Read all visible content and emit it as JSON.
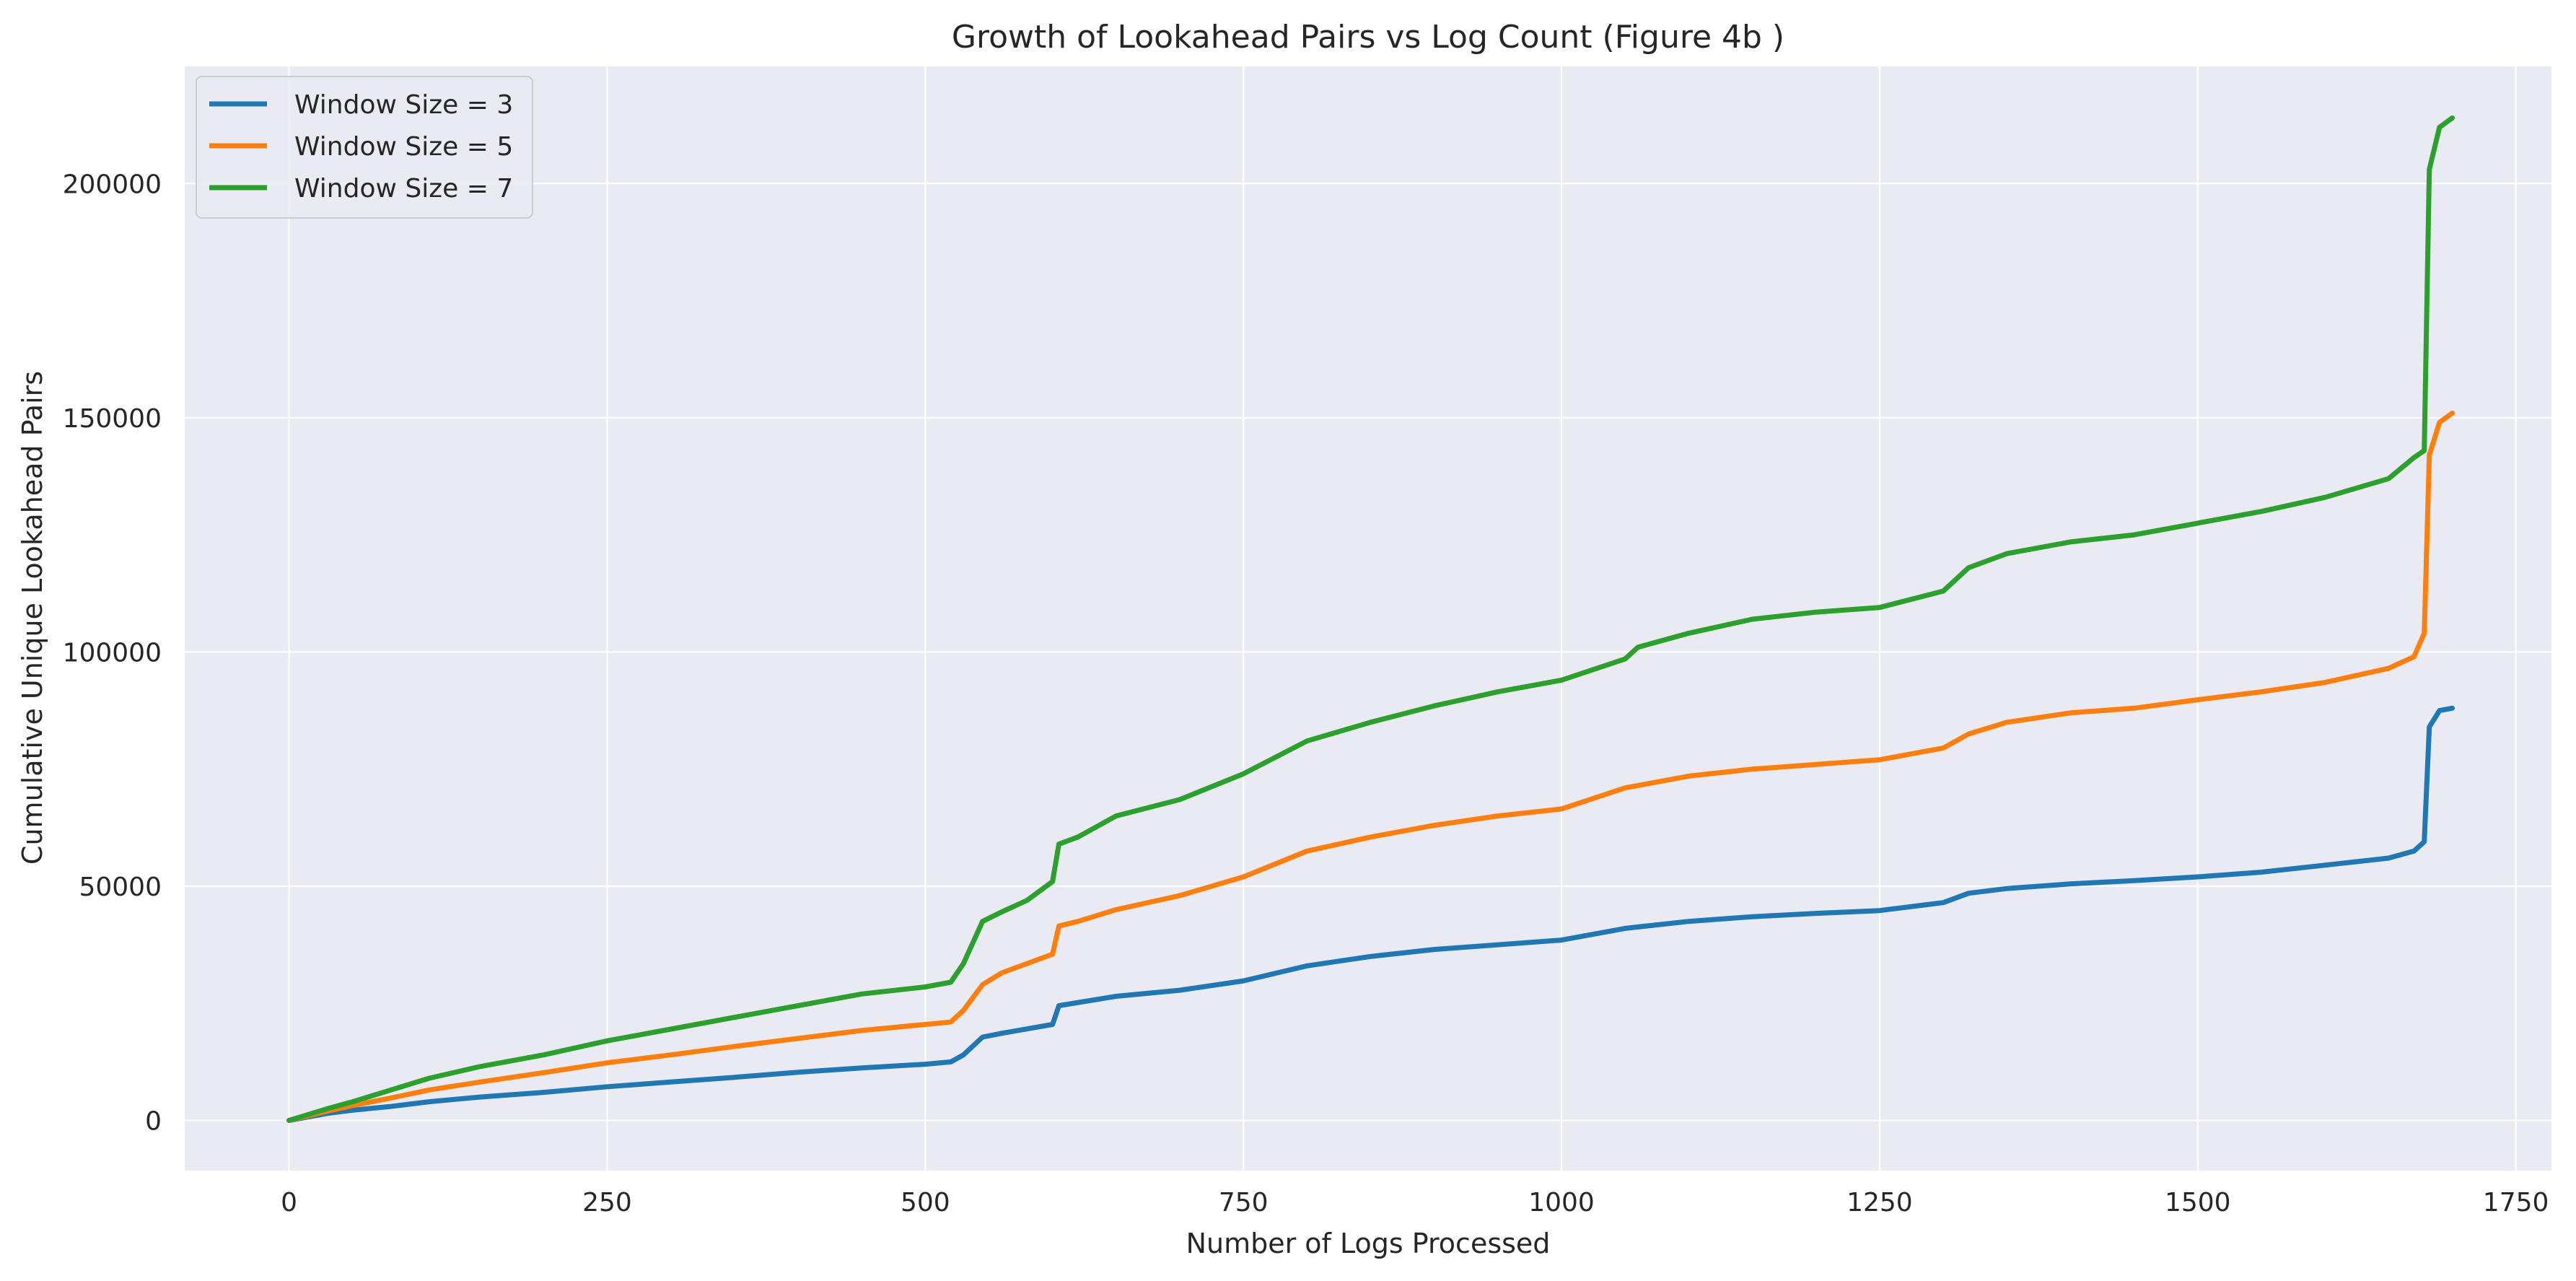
{
  "chart_data": {
    "type": "line",
    "title": "Growth of Lookahead Pairs vs Log Count (Figure 4b )",
    "xlabel": "Number of Logs Processed",
    "ylabel": "Cumulative Unique Lookahead Pairs",
    "xlim": [
      -82,
      1778
    ],
    "ylim": [
      -10700,
      225000
    ],
    "xticks": [
      0,
      250,
      500,
      750,
      1000,
      1250,
      1500,
      1750
    ],
    "yticks": [
      0,
      50000,
      100000,
      150000,
      200000
    ],
    "grid": true,
    "legend_position": "top-left",
    "colors": {
      "background": "#eaeaf2",
      "grid": "#ffffff"
    },
    "series": [
      {
        "name": "Window Size = 3",
        "color": "#1f77b4",
        "points": [
          [
            0,
            0
          ],
          [
            30,
            1500
          ],
          [
            50,
            2200
          ],
          [
            80,
            3000
          ],
          [
            110,
            4000
          ],
          [
            150,
            5000
          ],
          [
            200,
            6000
          ],
          [
            250,
            7200
          ],
          [
            300,
            8200
          ],
          [
            350,
            9200
          ],
          [
            400,
            10300
          ],
          [
            450,
            11200
          ],
          [
            500,
            12000
          ],
          [
            520,
            12500
          ],
          [
            530,
            14000
          ],
          [
            545,
            17800
          ],
          [
            560,
            18600
          ],
          [
            600,
            20500
          ],
          [
            605,
            24500
          ],
          [
            650,
            26500
          ],
          [
            700,
            27800
          ],
          [
            750,
            29800
          ],
          [
            800,
            33000
          ],
          [
            850,
            35000
          ],
          [
            900,
            36500
          ],
          [
            1000,
            38500
          ],
          [
            1050,
            41000
          ],
          [
            1100,
            42500
          ],
          [
            1150,
            43500
          ],
          [
            1200,
            44200
          ],
          [
            1250,
            44800
          ],
          [
            1300,
            46500
          ],
          [
            1320,
            48500
          ],
          [
            1350,
            49500
          ],
          [
            1400,
            50500
          ],
          [
            1450,
            51200
          ],
          [
            1500,
            52000
          ],
          [
            1550,
            53000
          ],
          [
            1600,
            54500
          ],
          [
            1650,
            56000
          ],
          [
            1670,
            57500
          ],
          [
            1678,
            59500
          ],
          [
            1682,
            84000
          ],
          [
            1690,
            87500
          ],
          [
            1700,
            88000
          ]
        ]
      },
      {
        "name": "Window Size = 5",
        "color": "#ff7f0e",
        "points": [
          [
            0,
            0
          ],
          [
            30,
            2000
          ],
          [
            50,
            3200
          ],
          [
            80,
            4800
          ],
          [
            110,
            6500
          ],
          [
            150,
            8200
          ],
          [
            200,
            10200
          ],
          [
            250,
            12300
          ],
          [
            300,
            14000
          ],
          [
            350,
            15800
          ],
          [
            400,
            17500
          ],
          [
            450,
            19200
          ],
          [
            500,
            20500
          ],
          [
            520,
            21000
          ],
          [
            530,
            23500
          ],
          [
            545,
            29000
          ],
          [
            560,
            31500
          ],
          [
            600,
            35500
          ],
          [
            605,
            41500
          ],
          [
            620,
            42500
          ],
          [
            650,
            45000
          ],
          [
            700,
            48000
          ],
          [
            750,
            52000
          ],
          [
            800,
            57500
          ],
          [
            850,
            60500
          ],
          [
            900,
            63000
          ],
          [
            950,
            65000
          ],
          [
            1000,
            66500
          ],
          [
            1050,
            71000
          ],
          [
            1100,
            73500
          ],
          [
            1150,
            75000
          ],
          [
            1200,
            76000
          ],
          [
            1250,
            77000
          ],
          [
            1300,
            79500
          ],
          [
            1320,
            82500
          ],
          [
            1350,
            85000
          ],
          [
            1400,
            87000
          ],
          [
            1450,
            88000
          ],
          [
            1500,
            89800
          ],
          [
            1550,
            91500
          ],
          [
            1600,
            93500
          ],
          [
            1650,
            96500
          ],
          [
            1670,
            99000
          ],
          [
            1678,
            104000
          ],
          [
            1682,
            142000
          ],
          [
            1690,
            149000
          ],
          [
            1700,
            151000
          ]
        ]
      },
      {
        "name": "Window Size = 7",
        "color": "#2ca02c",
        "points": [
          [
            0,
            0
          ],
          [
            30,
            2500
          ],
          [
            50,
            4000
          ],
          [
            80,
            6500
          ],
          [
            110,
            9000
          ],
          [
            150,
            11500
          ],
          [
            200,
            14000
          ],
          [
            250,
            17000
          ],
          [
            300,
            19500
          ],
          [
            350,
            22000
          ],
          [
            400,
            24500
          ],
          [
            450,
            27000
          ],
          [
            500,
            28500
          ],
          [
            520,
            29500
          ],
          [
            530,
            33500
          ],
          [
            545,
            42500
          ],
          [
            560,
            44500
          ],
          [
            580,
            47000
          ],
          [
            600,
            51000
          ],
          [
            605,
            59000
          ],
          [
            620,
            60500
          ],
          [
            650,
            65000
          ],
          [
            700,
            68500
          ],
          [
            750,
            74000
          ],
          [
            800,
            81000
          ],
          [
            850,
            85000
          ],
          [
            900,
            88500
          ],
          [
            950,
            91500
          ],
          [
            1000,
            94000
          ],
          [
            1050,
            98500
          ],
          [
            1060,
            101000
          ],
          [
            1100,
            104000
          ],
          [
            1150,
            107000
          ],
          [
            1200,
            108500
          ],
          [
            1250,
            109500
          ],
          [
            1300,
            113000
          ],
          [
            1320,
            118000
          ],
          [
            1350,
            121000
          ],
          [
            1400,
            123500
          ],
          [
            1450,
            125000
          ],
          [
            1500,
            127500
          ],
          [
            1550,
            130000
          ],
          [
            1600,
            133000
          ],
          [
            1650,
            137000
          ],
          [
            1670,
            141500
          ],
          [
            1678,
            143000
          ],
          [
            1682,
            203000
          ],
          [
            1690,
            212000
          ],
          [
            1700,
            214000
          ]
        ]
      }
    ]
  }
}
